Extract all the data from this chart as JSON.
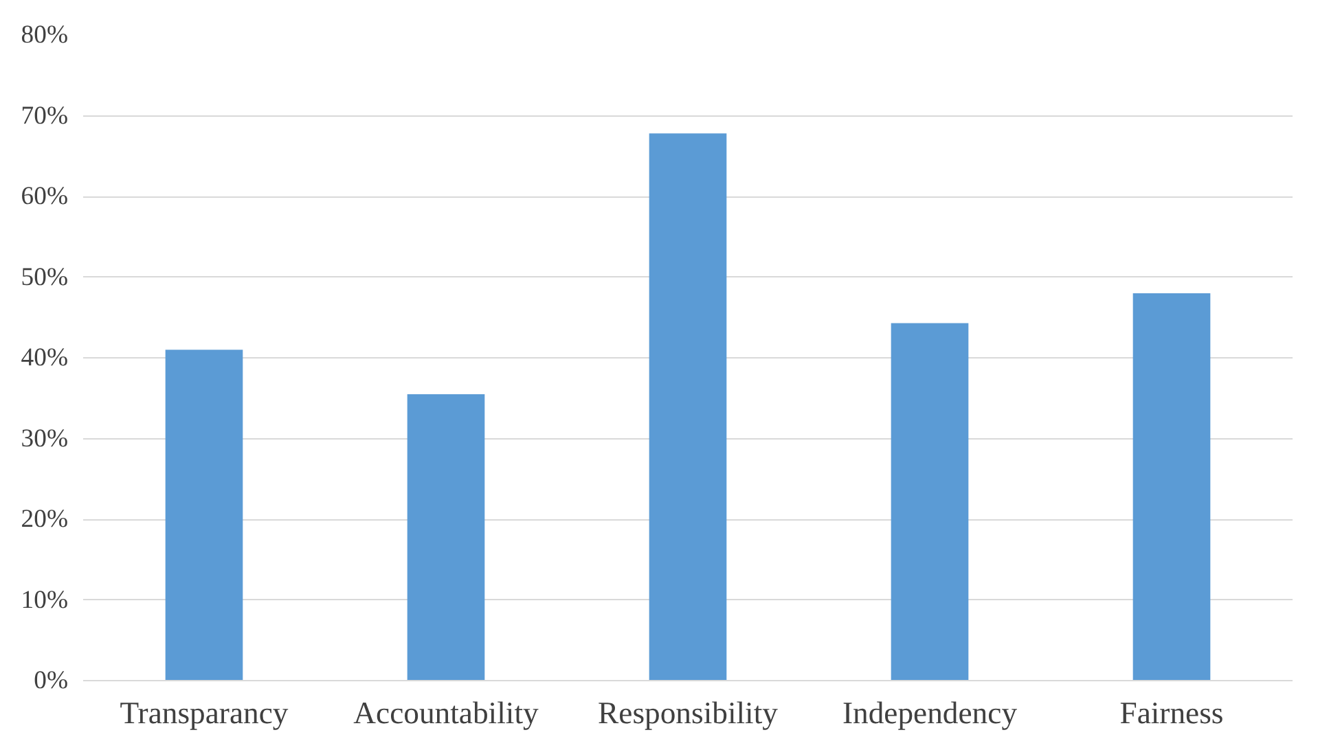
{
  "chart_data": {
    "type": "bar",
    "categories": [
      "Transparancy",
      "Accountability",
      "Responsibility",
      "Independency",
      "Fairness"
    ],
    "values": [
      41,
      35.5,
      67.8,
      44.3,
      48
    ],
    "color": "#5b9bd5",
    "ylim": [
      0,
      80
    ],
    "yticks": [
      {
        "value": 0,
        "label": "0%"
      },
      {
        "value": 10,
        "label": "10%"
      },
      {
        "value": 20,
        "label": "20%"
      },
      {
        "value": 30,
        "label": "30%"
      },
      {
        "value": 40,
        "label": "40%"
      },
      {
        "value": 50,
        "label": "50%"
      },
      {
        "value": 60,
        "label": "60%"
      },
      {
        "value": 70,
        "label": "70%"
      },
      {
        "value": 80,
        "label": "80%"
      }
    ],
    "grid": "y"
  }
}
